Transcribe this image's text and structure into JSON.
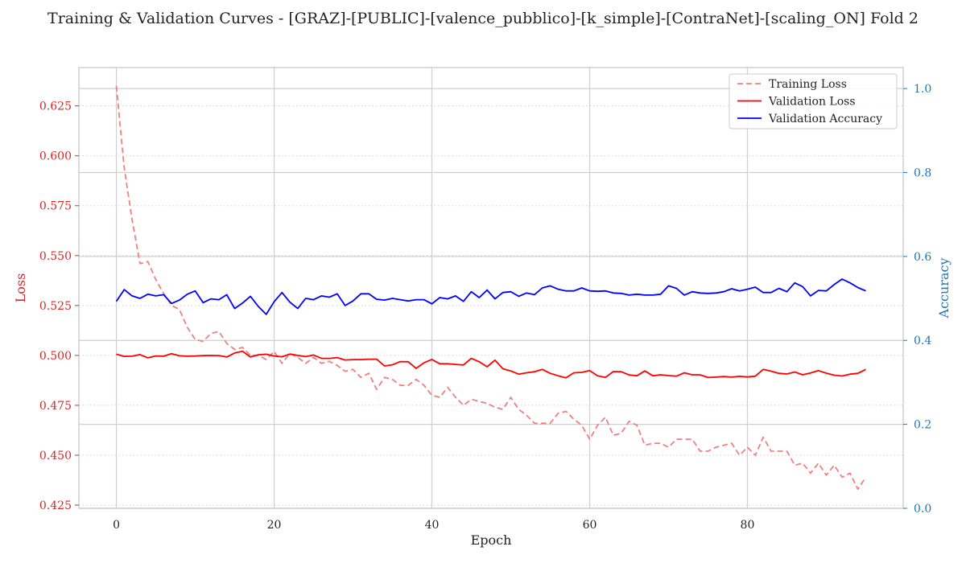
{
  "chart_data": {
    "type": "line",
    "title": "Training & Validation Curves - [GRAZ]-[PUBLIC]-[valence_pubblico]-[k_simple]-[ContraNet]-[scaling_ON] Fold 2",
    "xlabel": "Epoch",
    "ylabel_left": "Loss",
    "ylabel_right": "Accuracy",
    "xlim": [
      -4.75,
      99.75
    ],
    "ylim_left": [
      0.4234,
      0.6442
    ],
    "ylim_right": [
      0.0,
      1.05
    ],
    "xticks": [
      0,
      20,
      40,
      60,
      80
    ],
    "yticks_left": [
      0.425,
      0.45,
      0.475,
      0.5,
      0.525,
      0.55,
      0.575,
      0.6,
      0.625
    ],
    "yticks_right": [
      0.0,
      0.2,
      0.4,
      0.6,
      0.8,
      1.0
    ],
    "legend_position": "upper right",
    "colors": {
      "loss_axis": "#d62728",
      "acc_axis": "#1f77b4",
      "training_loss": "#f08080",
      "validation_loss": "#ff0000",
      "validation_accuracy": "#0000ff"
    },
    "series": [
      {
        "name": "Training Loss",
        "axis": "left",
        "style": "dashed",
        "x_start": 0,
        "values": [
          0.635,
          0.594,
          0.568,
          0.546,
          0.547,
          0.538,
          0.531,
          0.525,
          0.523,
          0.514,
          0.508,
          0.507,
          0.511,
          0.512,
          0.506,
          0.503,
          0.504,
          0.5,
          0.5,
          0.498,
          0.502,
          0.496,
          0.501,
          0.499,
          0.496,
          0.499,
          0.496,
          0.497,
          0.495,
          0.492,
          0.493,
          0.489,
          0.491,
          0.483,
          0.489,
          0.488,
          0.485,
          0.485,
          0.488,
          0.485,
          0.48,
          0.479,
          0.484,
          0.479,
          0.475,
          0.478,
          0.477,
          0.476,
          0.474,
          0.473,
          0.479,
          0.473,
          0.47,
          0.466,
          0.466,
          0.466,
          0.471,
          0.472,
          0.468,
          0.465,
          0.458,
          0.465,
          0.469,
          0.46,
          0.461,
          0.467,
          0.465,
          0.455,
          0.456,
          0.456,
          0.454,
          0.458,
          0.458,
          0.458,
          0.452,
          0.452,
          0.454,
          0.455,
          0.456,
          0.45,
          0.454,
          0.45,
          0.459,
          0.452,
          0.452,
          0.452,
          0.445,
          0.446,
          0.441,
          0.446,
          0.44,
          0.445,
          0.439,
          0.441,
          0.433,
          0.439
        ]
      },
      {
        "name": "Validation Loss",
        "axis": "left",
        "style": "solid",
        "x_start": 0,
        "values": [
          0.5006,
          0.4995,
          0.4996,
          0.5004,
          0.4988,
          0.4997,
          0.4996,
          0.5009,
          0.4998,
          0.4996,
          0.4997,
          0.4999,
          0.5,
          0.4999,
          0.4992,
          0.5012,
          0.5021,
          0.4992,
          0.5003,
          0.5006,
          0.4997,
          0.4993,
          0.5007,
          0.5,
          0.4994,
          0.5002,
          0.4985,
          0.4985,
          0.4989,
          0.4977,
          0.4979,
          0.4979,
          0.4981,
          0.4981,
          0.4947,
          0.4953,
          0.4969,
          0.4968,
          0.4935,
          0.4963,
          0.498,
          0.4958,
          0.4958,
          0.4955,
          0.4952,
          0.4985,
          0.4968,
          0.4943,
          0.4976,
          0.4933,
          0.4922,
          0.4906,
          0.4913,
          0.4918,
          0.493,
          0.491,
          0.4898,
          0.4888,
          0.4913,
          0.4915,
          0.4924,
          0.4898,
          0.489,
          0.4919,
          0.4918,
          0.4902,
          0.4898,
          0.4922,
          0.4898,
          0.4903,
          0.4899,
          0.4896,
          0.4913,
          0.4903,
          0.4903,
          0.4889,
          0.4891,
          0.4894,
          0.4891,
          0.4895,
          0.4892,
          0.4896,
          0.493,
          0.4921,
          0.491,
          0.4907,
          0.4917,
          0.4903,
          0.4912,
          0.4924,
          0.4911,
          0.4901,
          0.4897,
          0.4906,
          0.491,
          0.493
        ]
      },
      {
        "name": "Validation Accuracy",
        "axis": "right",
        "style": "solid",
        "x_start": 0,
        "values": [
          0.493,
          0.521,
          0.506,
          0.5,
          0.51,
          0.506,
          0.509,
          0.488,
          0.496,
          0.51,
          0.518,
          0.49,
          0.499,
          0.497,
          0.509,
          0.476,
          0.489,
          0.505,
          0.481,
          0.462,
          0.492,
          0.514,
          0.491,
          0.476,
          0.5,
          0.497,
          0.506,
          0.503,
          0.511,
          0.483,
          0.494,
          0.511,
          0.511,
          0.498,
          0.496,
          0.5,
          0.497,
          0.494,
          0.497,
          0.497,
          0.487,
          0.502,
          0.499,
          0.506,
          0.493,
          0.516,
          0.502,
          0.52,
          0.499,
          0.514,
          0.516,
          0.505,
          0.513,
          0.509,
          0.525,
          0.53,
          0.522,
          0.518,
          0.518,
          0.525,
          0.518,
          0.517,
          0.518,
          0.513,
          0.512,
          0.508,
          0.51,
          0.508,
          0.508,
          0.51,
          0.53,
          0.524,
          0.508,
          0.516,
          0.513,
          0.512,
          0.513,
          0.516,
          0.523,
          0.518,
          0.522,
          0.527,
          0.514,
          0.514,
          0.524,
          0.516,
          0.537,
          0.528,
          0.506,
          0.519,
          0.518,
          0.533,
          0.546,
          0.537,
          0.526,
          0.518
        ]
      }
    ]
  }
}
